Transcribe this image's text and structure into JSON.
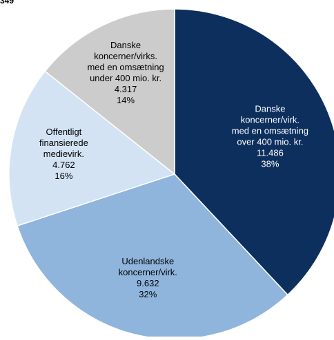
{
  "header_fragment": "349",
  "chart_data": {
    "type": "pie",
    "unit": "",
    "slices": [
      {
        "label_lines": [
          "Danske",
          "koncerner/virk.",
          "med en omsætning",
          "over 400 mio. kr."
        ],
        "value": 11486,
        "value_text": "11.486",
        "percent_text": "38%",
        "color": "#0d2f5e",
        "text_color": "#ffffff"
      },
      {
        "label_lines": [
          "Udenlandske",
          "koncerner/virk."
        ],
        "value": 9632,
        "value_text": "9.632",
        "percent_text": "32%",
        "color": "#8fb5dd",
        "text_color": "#000000"
      },
      {
        "label_lines": [
          "Offentligt",
          "finansierede",
          "medievirk."
        ],
        "value": 4762,
        "value_text": "4.762",
        "percent_text": "16%",
        "color": "#d3e3f4",
        "text_color": "#000000"
      },
      {
        "label_lines": [
          "Danske",
          "koncerner/virks.",
          "med en omsætning",
          "under 400 mio. kr."
        ],
        "value": 4317,
        "value_text": "4.317",
        "percent_text": "14%",
        "color": "#cccccc",
        "text_color": "#000000"
      }
    ],
    "start_angle_deg": 0,
    "direction": "clockwise"
  }
}
